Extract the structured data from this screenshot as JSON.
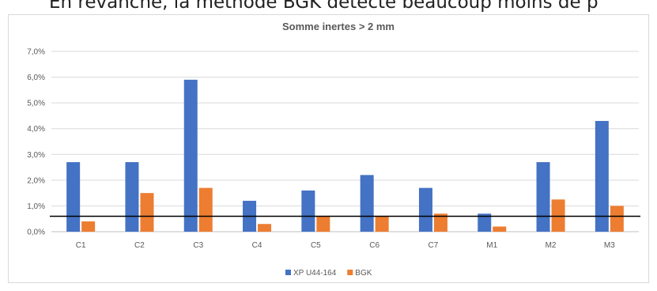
{
  "page_text": "En revanche, la méthode BGK détecte beaucoup moins de p",
  "chart_data": {
    "type": "bar",
    "title": "Somme inertes > 2 mm",
    "xlabel": "",
    "ylabel": "",
    "categories": [
      "C1",
      "C2",
      "C3",
      "C4",
      "C5",
      "C6",
      "C7",
      "M1",
      "M2",
      "M3"
    ],
    "series": [
      {
        "name": "XP U44-164",
        "color": "#4472C4",
        "values": [
          2.7,
          2.7,
          5.9,
          1.2,
          1.6,
          2.2,
          1.7,
          0.7,
          2.7,
          4.3
        ]
      },
      {
        "name": "BGK",
        "color": "#ED7D31",
        "values": [
          0.4,
          1.5,
          1.7,
          0.3,
          0.6,
          0.6,
          0.7,
          0.2,
          1.25,
          1.0
        ]
      }
    ],
    "ylim": [
      0,
      7
    ],
    "yticks": [
      "0,0%",
      "1,0%",
      "2,0%",
      "3,0%",
      "4,0%",
      "5,0%",
      "6,0%",
      "7,0%"
    ],
    "threshold": 0.6,
    "threshold_color": "#000000",
    "grid": true,
    "legend_position": "bottom"
  }
}
